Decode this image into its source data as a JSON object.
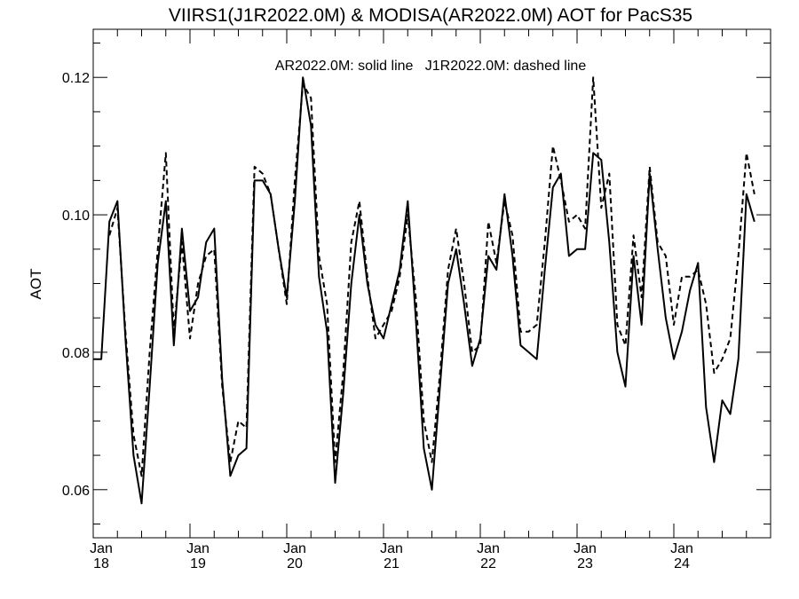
{
  "chart_data": {
    "type": "line",
    "title": "VIIRS1(J1R2022.0M) & MODISA(AR2022.0M)  AOT for PacS35",
    "annotation": "AR2022.0M: solid line   J1R2022.0M: dashed line",
    "xlabel": "",
    "ylabel": "AOT",
    "xlim": [
      "2018-01",
      "2024-12"
    ],
    "ylim": [
      0.053,
      0.127
    ],
    "y_ticks": [
      0.06,
      0.08,
      0.1,
      0.12
    ],
    "y_tick_labels": [
      "0.06",
      "0.08",
      "0.10",
      "0.12"
    ],
    "x_ticks": [
      {
        "month": "Jan",
        "year": "18"
      },
      {
        "month": "Jan",
        "year": "19"
      },
      {
        "month": "Jan",
        "year": "20"
      },
      {
        "month": "Jan",
        "year": "21"
      },
      {
        "month": "Jan",
        "year": "22"
      },
      {
        "month": "Jan",
        "year": "23"
      },
      {
        "month": "Jan",
        "year": "24"
      }
    ],
    "grid": false,
    "legend": "none",
    "x_start": "2018-01",
    "x_step": "1 month",
    "series": [
      {
        "style": "solid",
        "values": [
          0.079,
          0.079,
          0.099,
          0.102,
          0.082,
          0.065,
          0.058,
          0.075,
          0.093,
          0.102,
          0.081,
          0.098,
          0.086,
          0.088,
          0.096,
          0.098,
          0.076,
          0.062,
          0.065,
          0.066,
          0.105,
          0.105,
          0.103,
          0.095,
          0.088,
          0.102,
          0.12,
          0.113,
          0.091,
          0.083,
          0.061,
          0.074,
          0.09,
          0.1,
          0.09,
          0.084,
          0.082,
          0.087,
          0.092,
          0.102,
          0.085,
          0.066,
          0.06,
          0.075,
          0.09,
          0.095,
          0.087,
          0.078,
          0.082,
          0.094,
          0.092,
          0.103,
          0.094,
          0.081,
          0.08,
          0.079,
          0.092,
          0.104,
          0.106,
          0.094,
          0.095,
          0.095,
          0.109,
          0.108,
          0.096,
          0.08,
          0.075,
          0.094,
          0.084,
          0.106,
          0.095,
          0.085,
          0.079,
          0.083,
          0.089,
          0.093,
          0.072,
          0.064,
          0.073,
          0.071,
          0.079,
          0.103,
          0.099
        ]
      },
      {
        "style": "dashed",
        "values": [
          null,
          null,
          0.097,
          0.101,
          0.083,
          0.068,
          0.062,
          0.08,
          0.095,
          0.109,
          0.083,
          0.096,
          0.082,
          0.09,
          0.094,
          0.095,
          0.075,
          0.064,
          0.07,
          0.069,
          0.107,
          0.106,
          0.103,
          0.095,
          0.087,
          0.105,
          0.119,
          0.117,
          0.094,
          0.087,
          0.064,
          0.077,
          0.096,
          0.102,
          0.091,
          0.082,
          0.084,
          0.086,
          0.091,
          0.1,
          0.088,
          0.07,
          0.064,
          0.077,
          0.092,
          0.098,
          0.09,
          0.08,
          0.081,
          0.099,
          0.093,
          0.102,
          0.097,
          0.083,
          0.083,
          0.084,
          0.096,
          0.11,
          0.105,
          0.099,
          0.1,
          0.098,
          0.12,
          0.101,
          0.106,
          0.084,
          0.081,
          0.097,
          0.088,
          0.107,
          0.096,
          0.094,
          0.084,
          0.091,
          0.091,
          0.092,
          0.087,
          0.077,
          0.079,
          0.082,
          0.094,
          0.109,
          0.103
        ]
      }
    ]
  }
}
